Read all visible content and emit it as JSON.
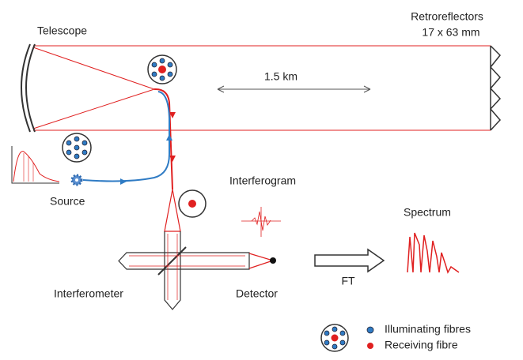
{
  "labels": {
    "retroreflectors": "Retroreflectors",
    "retro_size": "17 x 63  mm",
    "telescope": "Telescope",
    "distance": "1.5 km",
    "source": "Source",
    "interferogram": "Interferogram",
    "spectrum": "Spectrum",
    "interferometer": "Interferometer",
    "detector": "Detector",
    "ft": "FT"
  },
  "legend": [
    {
      "label": "Illuminating fibres"
    },
    {
      "label": "Receiving fibre"
    }
  ]
}
